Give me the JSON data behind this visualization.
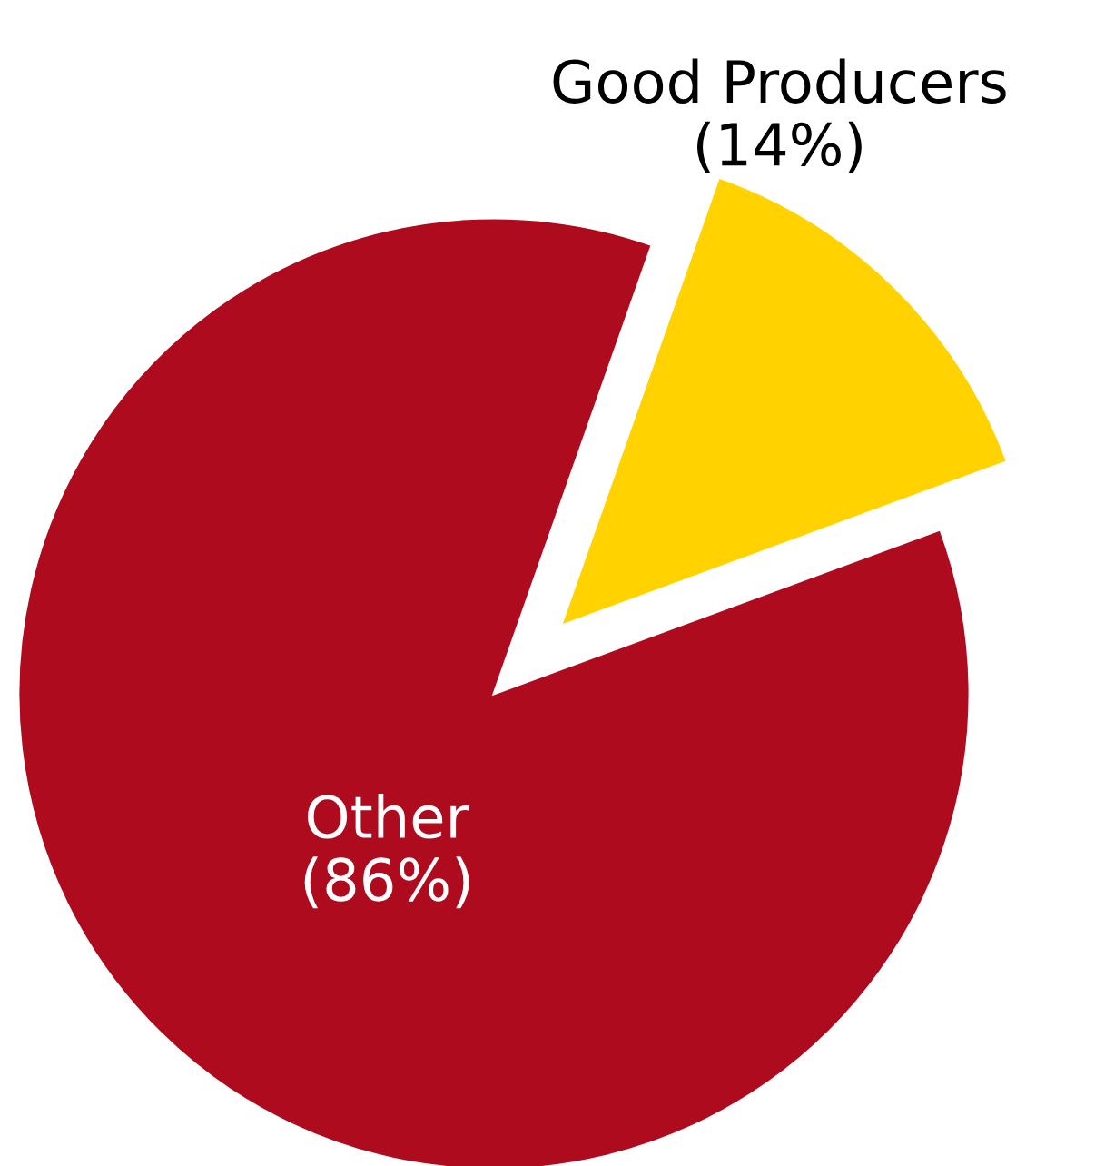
{
  "chart_data": {
    "type": "pie",
    "categories": [
      "Good Producers",
      "Other"
    ],
    "values": [
      14,
      86
    ],
    "value_labels": [
      "(14%)",
      "(86%)"
    ],
    "colors": [
      "#ffd200",
      "#ae0c1e"
    ]
  }
}
